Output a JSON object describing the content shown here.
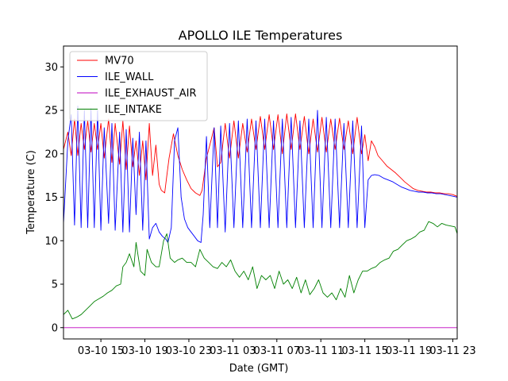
{
  "chart_data": {
    "type": "line",
    "title": "APOLLO ILE Temperatures",
    "xlabel": "Date (GMT)",
    "ylabel": "Temperature (C)",
    "x_unit": "hours since 03-10 00:00 GMT",
    "xlim": [
      11.6,
      47.4
    ],
    "ylim": [
      -1.3,
      32.4
    ],
    "xticks": [
      {
        "label": "03-10 15",
        "x": 15
      },
      {
        "label": "03-10 19",
        "x": 19
      },
      {
        "label": "03-10 23",
        "x": 23
      },
      {
        "label": "03-11 03",
        "x": 27
      },
      {
        "label": "03-11 07",
        "x": 31
      },
      {
        "label": "03-11 11",
        "x": 35
      },
      {
        "label": "03-11 15",
        "x": 39
      },
      {
        "label": "03-11 19",
        "x": 43
      },
      {
        "label": "03-11 23",
        "x": 47
      }
    ],
    "yticks": [
      0,
      5,
      10,
      15,
      20,
      25,
      30
    ],
    "legend_position": "top-left",
    "series": [
      {
        "name": "MV70",
        "color": "#ff0000",
        "x": [
          11.6,
          12.0,
          12.3,
          12.6,
          12.9,
          13.2,
          13.5,
          13.8,
          14.1,
          14.4,
          14.7,
          15.0,
          15.3,
          15.7,
          16.0,
          16.3,
          16.7,
          17.0,
          17.3,
          17.6,
          17.9,
          18.2,
          18.5,
          18.8,
          19.1,
          19.4,
          19.7,
          20.0,
          20.3,
          20.5,
          20.8,
          21.0,
          21.2,
          21.6,
          22.0,
          22.4,
          22.8,
          23.2,
          23.6,
          24.0,
          24.2,
          24.6,
          25.0,
          25.3,
          25.6,
          25.9,
          26.3,
          26.7,
          27.1,
          27.5,
          27.9,
          28.3,
          28.7,
          29.1,
          29.5,
          29.9,
          30.3,
          30.7,
          31.1,
          31.5,
          31.9,
          32.3,
          32.7,
          33.1,
          33.5,
          33.9,
          34.3,
          34.7,
          35.1,
          35.5,
          35.9,
          36.3,
          36.7,
          37.1,
          37.5,
          37.9,
          38.3,
          38.7,
          39.0,
          39.3,
          39.6,
          39.9,
          40.2,
          40.6,
          41.0,
          41.4,
          41.8,
          42.2,
          42.6,
          43.0,
          43.4,
          43.8,
          44.2,
          44.6,
          45.0,
          45.4,
          45.8,
          46.2,
          46.6,
          47.0,
          47.4
        ],
        "y": [
          20.5,
          22.5,
          19.8,
          24.0,
          19.8,
          23.5,
          20.5,
          23.8,
          20.2,
          23.5,
          20.5,
          23.5,
          19.5,
          24.0,
          19.0,
          23.5,
          18.8,
          23.8,
          18.2,
          23.2,
          18.5,
          21.5,
          17.5,
          21.5,
          17.0,
          23.5,
          17.5,
          21.0,
          16.5,
          15.8,
          15.5,
          17.5,
          19.5,
          22.3,
          19.8,
          18.2,
          17.0,
          16.0,
          15.5,
          15.2,
          15.8,
          19.5,
          21.5,
          23.0,
          18.5,
          19.0,
          23.5,
          19.5,
          23.8,
          19.5,
          23.5,
          20.2,
          24.0,
          20.5,
          24.3,
          20.5,
          24.5,
          20.5,
          24.5,
          20.0,
          24.6,
          20.5,
          24.6,
          20.5,
          24.3,
          20.0,
          24.0,
          20.2,
          24.2,
          20.2,
          24.0,
          20.5,
          24.1,
          20.5,
          23.8,
          20.0,
          24.2,
          20.0,
          22.2,
          19.2,
          21.5,
          20.8,
          19.8,
          19.2,
          18.6,
          18.2,
          17.8,
          17.3,
          16.8,
          16.4,
          16.0,
          15.8,
          15.7,
          15.6,
          15.6,
          15.5,
          15.5,
          15.4,
          15.4,
          15.3,
          15.1
        ]
      },
      {
        "name": "ILE_WALL",
        "color": "#0000ff",
        "x": [
          11.6,
          12.0,
          12.3,
          12.6,
          12.9,
          13.2,
          13.5,
          13.8,
          14.1,
          14.4,
          14.7,
          15.0,
          15.3,
          15.7,
          16.0,
          16.3,
          16.7,
          17.0,
          17.3,
          17.6,
          17.9,
          18.2,
          18.5,
          18.8,
          19.1,
          19.4,
          19.7,
          20.0,
          20.3,
          20.6,
          20.9,
          21.1,
          21.4,
          21.7,
          22.0,
          22.3,
          22.6,
          22.9,
          23.2,
          23.5,
          23.8,
          24.1,
          24.3,
          24.6,
          24.9,
          25.3,
          25.6,
          25.9,
          26.3,
          26.7,
          27.1,
          27.5,
          27.9,
          28.3,
          28.7,
          29.1,
          29.5,
          29.9,
          30.3,
          30.7,
          31.1,
          31.5,
          31.9,
          32.3,
          32.7,
          33.1,
          33.5,
          33.9,
          34.3,
          34.7,
          35.1,
          35.5,
          35.9,
          36.3,
          36.7,
          37.1,
          37.5,
          37.9,
          38.3,
          38.7,
          39.0,
          39.3,
          39.6,
          39.9,
          40.3,
          40.7,
          41.1,
          41.5,
          41.9,
          42.3,
          42.7,
          43.1,
          43.5,
          43.9,
          44.3,
          44.7,
          45.1,
          45.5,
          45.9,
          46.3,
          46.7,
          47.1,
          47.4
        ],
        "y": [
          12.0,
          21.5,
          24.5,
          11.8,
          25.5,
          11.5,
          25.0,
          11.5,
          25.2,
          11.5,
          25.0,
          11.2,
          23.0,
          12.0,
          23.5,
          11.2,
          22.5,
          11.0,
          22.8,
          11.0,
          21.8,
          13.0,
          22.5,
          11.2,
          21.5,
          10.2,
          11.5,
          12.0,
          11.0,
          10.5,
          10.2,
          9.8,
          11.5,
          21.5,
          23.0,
          15.0,
          12.5,
          11.5,
          11.0,
          10.5,
          10.0,
          9.8,
          13.0,
          22.0,
          11.5,
          23.0,
          11.5,
          23.2,
          11.0,
          23.5,
          11.5,
          23.8,
          11.5,
          24.0,
          11.5,
          23.8,
          11.5,
          24.0,
          11.5,
          23.8,
          11.5,
          24.0,
          11.5,
          24.2,
          11.5,
          23.8,
          11.5,
          24.0,
          11.5,
          25.0,
          11.5,
          24.2,
          11.5,
          24.0,
          11.5,
          23.5,
          11.5,
          23.8,
          11.5,
          23.2,
          11.5,
          17.0,
          17.5,
          17.6,
          17.5,
          17.2,
          17.0,
          16.8,
          16.5,
          16.2,
          16.0,
          15.8,
          15.7,
          15.6,
          15.6,
          15.5,
          15.5,
          15.4,
          15.4,
          15.3,
          15.2,
          15.1,
          15.0
        ]
      },
      {
        "name": "ILE_EXHAUST_AIR",
        "color": "#bf00bf",
        "x": [
          11.6,
          47.4
        ],
        "y": [
          0.0,
          0.0
        ]
      },
      {
        "name": "ILE_INTAKE",
        "color": "#008000",
        "x": [
          11.6,
          12.0,
          12.4,
          12.8,
          13.2,
          13.6,
          14.0,
          14.4,
          14.8,
          15.2,
          15.6,
          16.0,
          16.4,
          16.8,
          17.0,
          17.3,
          17.6,
          18.0,
          18.2,
          18.6,
          19.0,
          19.2,
          19.6,
          20.0,
          20.3,
          20.7,
          21.0,
          21.3,
          21.7,
          22.0,
          22.4,
          22.8,
          23.2,
          23.6,
          24.0,
          24.4,
          24.8,
          25.2,
          25.6,
          26.0,
          26.4,
          26.8,
          27.2,
          27.6,
          28.0,
          28.4,
          28.8,
          29.2,
          29.6,
          30.0,
          30.4,
          30.8,
          31.2,
          31.6,
          32.0,
          32.4,
          32.8,
          33.2,
          33.6,
          34.0,
          34.4,
          34.8,
          35.2,
          35.6,
          36.0,
          36.4,
          36.8,
          37.2,
          37.6,
          38.0,
          38.4,
          38.8,
          39.2,
          39.6,
          40.0,
          40.4,
          40.8,
          41.2,
          41.6,
          42.0,
          42.4,
          42.8,
          43.2,
          43.6,
          44.0,
          44.4,
          44.8,
          45.2,
          45.6,
          46.0,
          46.4,
          46.8,
          47.2,
          47.4
        ],
        "y": [
          1.5,
          2.0,
          1.0,
          1.2,
          1.5,
          2.0,
          2.5,
          3.0,
          3.3,
          3.6,
          4.0,
          4.3,
          4.8,
          5.0,
          7.0,
          7.5,
          8.5,
          7.0,
          9.8,
          6.5,
          6.0,
          9.0,
          7.5,
          7.0,
          7.0,
          10.0,
          10.8,
          8.0,
          7.5,
          7.8,
          8.0,
          7.5,
          7.5,
          7.0,
          9.0,
          8.0,
          7.5,
          7.0,
          6.8,
          7.5,
          7.0,
          7.8,
          6.5,
          5.8,
          6.5,
          5.5,
          7.0,
          4.5,
          6.0,
          5.5,
          6.0,
          4.5,
          6.5,
          5.0,
          5.5,
          4.5,
          5.8,
          4.0,
          5.5,
          3.8,
          4.5,
          5.5,
          4.0,
          3.5,
          4.0,
          3.2,
          4.5,
          3.5,
          6.0,
          4.0,
          5.5,
          6.5,
          6.5,
          6.8,
          7.0,
          7.5,
          7.8,
          8.0,
          8.8,
          9.0,
          9.5,
          10.0,
          10.2,
          10.5,
          11.0,
          11.2,
          12.2,
          12.0,
          11.6,
          12.0,
          11.8,
          11.7,
          11.6,
          10.8
        ]
      }
    ]
  }
}
